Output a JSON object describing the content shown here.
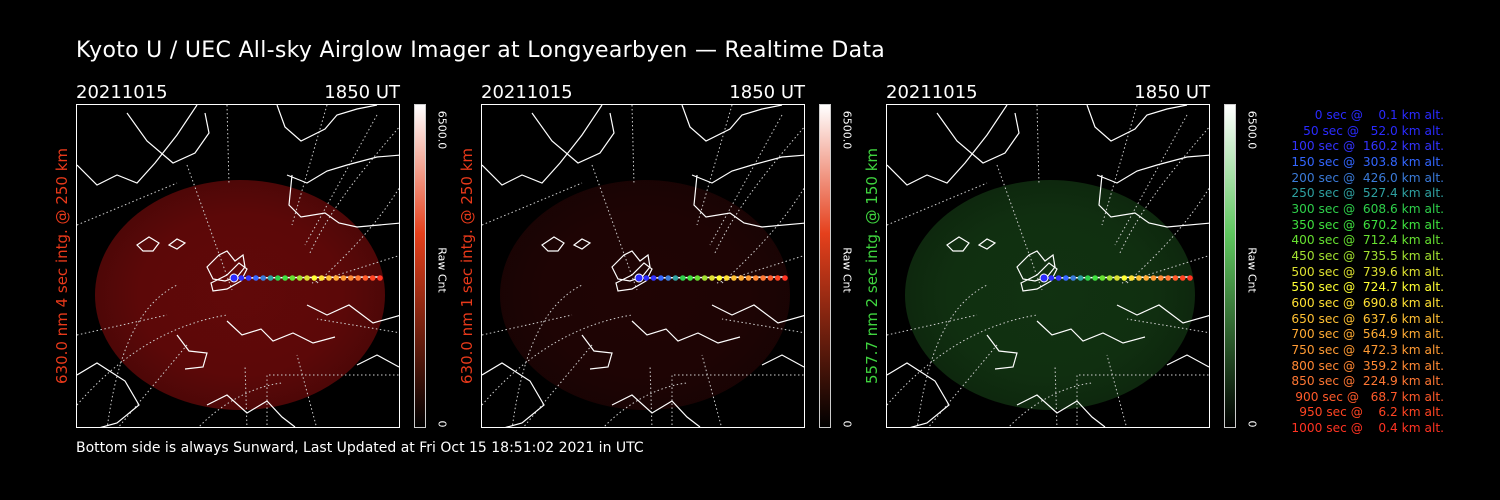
{
  "title": "Kyoto U / UEC All-sky Airglow Imager at Longyearbyen — Realtime Data",
  "footer": "Bottom side is always Sunward, Last Updated at Fri Oct 15 18:51:02 2021 in UTC",
  "panels": [
    {
      "date": "20211015",
      "time": "1850 UT",
      "ylabel": "630.0 nm 4 sec intg. @ 250 km",
      "ylabel_color": "#e8391a",
      "cbar_max": "6500.0",
      "cbar_min": "0",
      "cbar_label": "Raw Cnt",
      "glow_color": "#b01010",
      "glow_opacity": 0.55,
      "cbar_top_color": "#ffffff",
      "cbar_mid_color": "#e5401c",
      "cbar_bot_color": "#000000"
    },
    {
      "date": "20211015",
      "time": "1850 UT",
      "ylabel": "630.0 nm 1 sec intg. @ 250 km",
      "ylabel_color": "#e8391a",
      "cbar_max": "6500.0",
      "cbar_min": "0",
      "cbar_label": "Raw Cnt",
      "glow_color": "#5a0c0c",
      "glow_opacity": 0.35,
      "cbar_top_color": "#ffffff",
      "cbar_mid_color": "#e5401c",
      "cbar_bot_color": "#000000"
    },
    {
      "date": "20211015",
      "time": "1850 UT",
      "ylabel": "557.7 nm 2 sec intg. @ 150 km",
      "ylabel_color": "#3fd43f",
      "cbar_max": "6500.0",
      "cbar_min": "0",
      "cbar_label": "Raw Cnt",
      "glow_color": "#1f5a1f",
      "glow_opacity": 0.55,
      "cbar_top_color": "#ffffff",
      "cbar_mid_color": "#5fc75f",
      "cbar_bot_color": "#000000"
    }
  ],
  "legend": [
    {
      "text": "0 sec @    0.1 km alt.",
      "color": "#2a2aff"
    },
    {
      "text": "50 sec @   52.0 km alt.",
      "color": "#2a2aff"
    },
    {
      "text": "100 sec @  160.2 km alt.",
      "color": "#3333ff"
    },
    {
      "text": "150 sec @  303.8 km alt.",
      "color": "#3366ff"
    },
    {
      "text": "200 sec @  426.0 km alt.",
      "color": "#3a7ad8"
    },
    {
      "text": "250 sec @  527.4 km alt.",
      "color": "#2ea0a0"
    },
    {
      "text": "300 sec @  608.6 km alt.",
      "color": "#2ecf4a"
    },
    {
      "text": "350 sec @  670.2 km alt.",
      "color": "#3ee03e"
    },
    {
      "text": "400 sec @  712.4 km alt.",
      "color": "#66e030"
    },
    {
      "text": "450 sec @  735.5 km alt.",
      "color": "#a2e030"
    },
    {
      "text": "500 sec @  739.6 km alt.",
      "color": "#dde030"
    },
    {
      "text": "550 sec @  724.7 km alt.",
      "color": "#ffff33"
    },
    {
      "text": "600 sec @  690.8 km alt.",
      "color": "#ffe033"
    },
    {
      "text": "650 sec @  637.6 km alt.",
      "color": "#ffc033"
    },
    {
      "text": "700 sec @  564.9 km alt.",
      "color": "#ffaa33"
    },
    {
      "text": "750 sec @  472.3 km alt.",
      "color": "#ff9a33"
    },
    {
      "text": "800 sec @  359.2 km alt.",
      "color": "#ff8833"
    },
    {
      "text": "850 sec @  224.9 km alt.",
      "color": "#ff7733"
    },
    {
      "text": "900 sec @   68.7 km alt.",
      "color": "#ff5a2a"
    },
    {
      "text": "950 sec @    6.2 km alt.",
      "color": "#ff4422"
    },
    {
      "text": "1000 sec @    0.4 km alt.",
      "color": "#ff3322"
    }
  ]
}
